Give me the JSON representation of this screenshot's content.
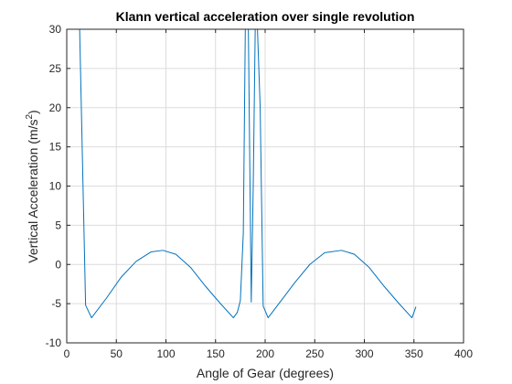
{
  "chart_data": {
    "type": "line",
    "title": "Klann vertical acceleration over single revolution",
    "xlabel": "Angle of Gear (degrees)",
    "ylabel": "Vertical Acceleration (m/s",
    "ylabel_superscript": "2",
    "ylabel_suffix": ")",
    "xlim": [
      0,
      400
    ],
    "ylim": [
      -10,
      30
    ],
    "xticks": [
      0,
      50,
      100,
      150,
      200,
      250,
      300,
      350,
      400
    ],
    "yticks": [
      -10,
      -5,
      0,
      5,
      10,
      15,
      20,
      25,
      30
    ],
    "grid": true,
    "legend": "none",
    "series": [
      {
        "color": "#0072bd",
        "x": [
          13,
          19,
          25,
          40,
          55,
          70,
          85,
          97,
          110,
          125,
          140,
          155,
          168,
          172,
          175,
          178,
          180,
          183,
          186,
          188,
          190,
          192,
          195,
          198,
          203,
          215,
          230,
          245,
          260,
          277,
          290,
          305,
          320,
          335,
          348,
          352
        ],
        "y": [
          30,
          -5.2,
          -6.8,
          -4.3,
          -1.6,
          0.4,
          1.6,
          1.8,
          1.3,
          -0.4,
          -2.8,
          -5.0,
          -6.8,
          -6.1,
          -4.6,
          4,
          30,
          31,
          -4.8,
          10,
          30,
          31,
          20,
          -5.3,
          -6.8,
          -4.8,
          -2.3,
          0,
          1.5,
          1.8,
          1.3,
          -0.4,
          -2.8,
          -5.0,
          -6.8,
          -5.4
        ]
      }
    ]
  }
}
